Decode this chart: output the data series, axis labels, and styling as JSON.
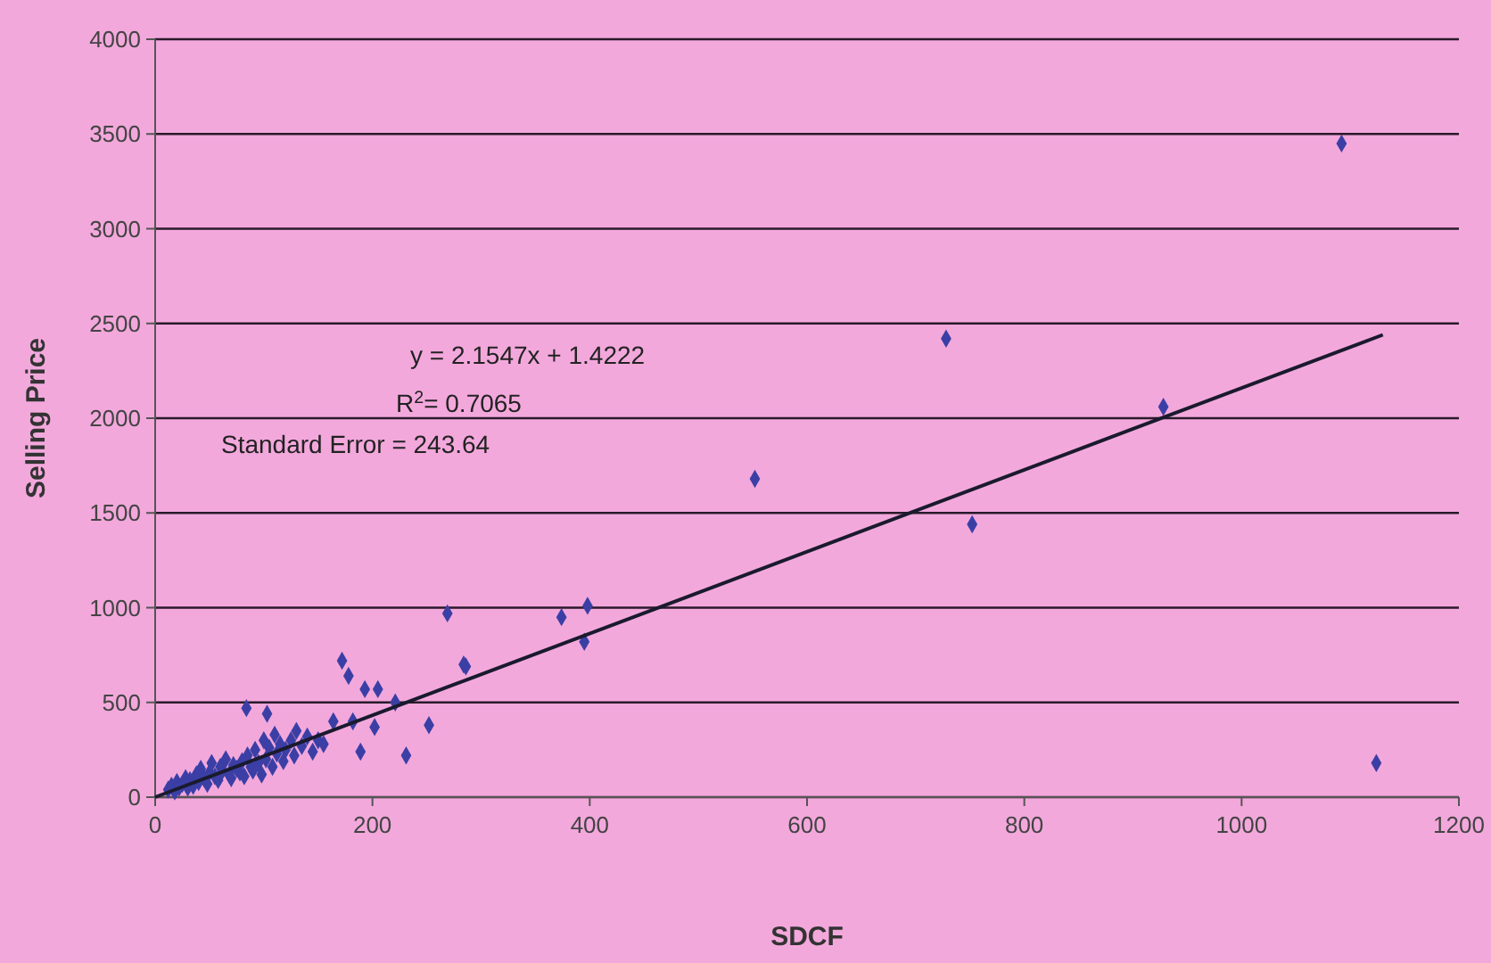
{
  "chart_data": {
    "type": "scatter",
    "xlabel": "SDCF",
    "ylabel": "Selling Price",
    "xlim": [
      0,
      1200
    ],
    "ylim": [
      0,
      4000
    ],
    "xticks": [
      0,
      200,
      400,
      600,
      800,
      1000,
      1200
    ],
    "yticks": [
      0,
      500,
      1000,
      1500,
      2000,
      2500,
      3000,
      3500,
      4000
    ],
    "grid": "y",
    "annotations": [
      "y = 2.1547x + 1.4222",
      "R$^{2}$= 0.7065",
      "Standard Error = 243.64"
    ],
    "series": [
      {
        "marker": "diamond",
        "color": "#3b3fa5",
        "x": [
          12,
          15,
          18,
          20,
          22,
          25,
          28,
          30,
          32,
          35,
          38,
          40,
          42,
          45,
          48,
          50,
          52,
          55,
          58,
          60,
          62,
          65,
          68,
          70,
          72,
          75,
          78,
          80,
          82,
          85,
          88,
          90,
          92,
          95,
          98,
          100,
          102,
          105,
          108,
          110,
          112,
          115,
          118,
          120,
          125,
          128,
          130,
          135,
          140,
          145,
          150,
          155,
          84,
          103,
          164,
          182,
          172,
          178,
          193,
          205,
          221,
          252,
          231,
          189,
          202,
          269,
          284,
          286,
          374,
          398,
          395,
          552,
          728,
          752,
          928,
          1092,
          1124
        ],
        "values": [
          40,
          60,
          30,
          80,
          50,
          70,
          100,
          50,
          90,
          60,
          120,
          80,
          150,
          100,
          70,
          130,
          180,
          110,
          90,
          160,
          140,
          200,
          120,
          100,
          170,
          150,
          130,
          190,
          110,
          220,
          160,
          140,
          250,
          180,
          120,
          300,
          200,
          260,
          160,
          330,
          230,
          280,
          190,
          250,
          300,
          220,
          350,
          270,
          320,
          240,
          300,
          280,
          470,
          440,
          400,
          400,
          720,
          640,
          570,
          570,
          500,
          380,
          220,
          240,
          370,
          970,
          700,
          690,
          950,
          1010,
          820,
          1680,
          2420,
          1440,
          2060,
          3450,
          180
        ]
      },
      {
        "type": "line",
        "color": "#1a1a2e",
        "x": [
          0,
          1130
        ],
        "values": [
          0,
          2440
        ]
      }
    ]
  }
}
